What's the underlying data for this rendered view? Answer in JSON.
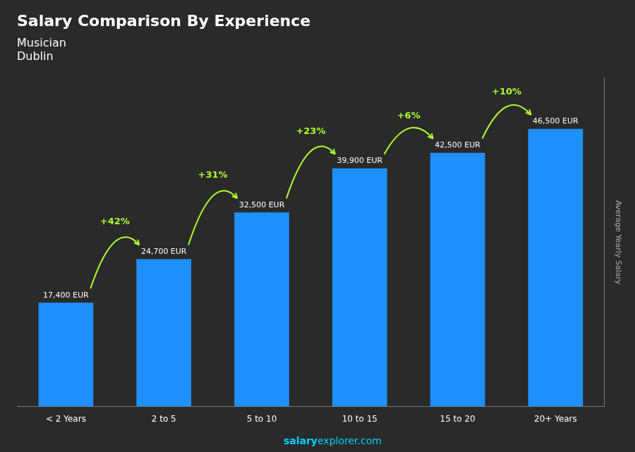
{
  "chart_data": {
    "type": "bar",
    "title": "Salary Comparison By Experience",
    "subtitle": [
      "Musician",
      "Dublin"
    ],
    "ylabel": "Average Yearly Salary",
    "categories": [
      "< 2 Years",
      "2 to 5",
      "5 to 10",
      "10 to 15",
      "15 to 20",
      "20+ Years"
    ],
    "values": [
      17400,
      24700,
      32500,
      39900,
      42500,
      46500
    ],
    "value_labels": [
      "17,400 EUR",
      "24,700 EUR",
      "32,500 EUR",
      "39,900 EUR",
      "42,500 EUR",
      "46,500 EUR"
    ],
    "data_labels": true,
    "annotations": [
      "+42%",
      "+31%",
      "+23%",
      "+6%",
      "+10%"
    ],
    "watermark": [
      "salary",
      "explorer.com"
    ],
    "color": "#1E90FF",
    "ylim": [
      0,
      55000
    ],
    "tick_labels": "x",
    "grid": false
  }
}
